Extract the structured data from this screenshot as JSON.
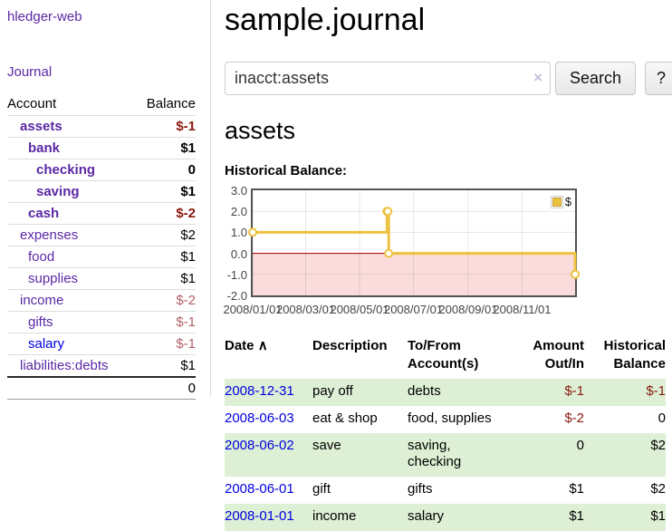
{
  "colors": {
    "link_visited_purple": "#5b28a5",
    "link_blue": "#0000e0",
    "negative_strong": "#8b1a10",
    "negative_muted": "#b06066",
    "row_stripe_green": "#ddefd5",
    "series_yellow": "#edc240",
    "chart_negative_region": "#fbdcdc",
    "chart_zero_line": "#a40000",
    "chart_border": "#545454"
  },
  "app": {
    "title": "hledger-web"
  },
  "sidebar": {
    "journal_link": "Journal",
    "accounts": {
      "headers": {
        "account": "Account",
        "balance": "Balance"
      },
      "rows": [
        {
          "name": "assets",
          "balance": "$-1"
        },
        {
          "name": "bank",
          "balance": "$1"
        },
        {
          "name": "checking",
          "balance": "0"
        },
        {
          "name": "saving",
          "balance": "$1"
        },
        {
          "name": "cash",
          "balance": "$-2"
        },
        {
          "name": "expenses",
          "balance": "$2"
        },
        {
          "name": "food",
          "balance": "$1"
        },
        {
          "name": "supplies",
          "balance": "$1"
        },
        {
          "name": "income",
          "balance": "$-2"
        },
        {
          "name": "gifts",
          "balance": "$-1"
        },
        {
          "name": "salary",
          "balance": "$-1"
        },
        {
          "name": "liabilities:debts",
          "balance": "$1"
        }
      ],
      "total": "0"
    }
  },
  "main": {
    "title": "sample.journal",
    "search": {
      "value": "inacct:assets",
      "clear_icon": "×",
      "button_label": "Search",
      "help_label": "?"
    },
    "account_heading": "assets"
  },
  "chart_data": {
    "type": "line",
    "title": "Historical Balance:",
    "step": true,
    "series": [
      {
        "name": "$",
        "color": "#edc240",
        "points": [
          {
            "date": "2008-01-01",
            "value": 1
          },
          {
            "date": "2008-06-01",
            "value": 2
          },
          {
            "date": "2008-06-02",
            "value": 2
          },
          {
            "date": "2008-06-03",
            "value": 0
          },
          {
            "date": "2008-12-31",
            "value": -1
          }
        ]
      }
    ],
    "x_range": [
      "2008-01-01",
      "2008-12-31"
    ],
    "y_range": [
      -2,
      3
    ],
    "x_ticks": [
      "2008/01/01",
      "2008/03/01",
      "2008/05/01",
      "2008/07/01",
      "2008/09/01",
      "2008/11/01"
    ],
    "y_ticks": [
      "3.0",
      "2.0",
      "1.0",
      "0.0",
      "-1.0",
      "-2.0"
    ],
    "legend": {
      "label": "$",
      "position": "top-right"
    },
    "grid": true,
    "negative_region_color": "#fbdcdc",
    "zero_line_color": "#a40000"
  },
  "transactions": {
    "headers": {
      "date": "Date",
      "sort_indicator": "∧",
      "description": "Description",
      "tofrom": "To/From Account(s)",
      "amount": "Amount Out/In",
      "historical": "Historical Balance"
    },
    "rows": [
      {
        "date": "2008-12-31",
        "description": "pay off",
        "accounts": "debts",
        "amount": "$-1",
        "balance": "$-1"
      },
      {
        "date": "2008-06-03",
        "description": "eat & shop",
        "accounts": "food, supplies",
        "amount": "$-2",
        "balance": "0"
      },
      {
        "date": "2008-06-02",
        "description": "save",
        "accounts": "saving, checking",
        "amount": "0",
        "balance": "$2"
      },
      {
        "date": "2008-06-01",
        "description": "gift",
        "accounts": "gifts",
        "amount": "$1",
        "balance": "$2"
      },
      {
        "date": "2008-01-01",
        "description": "income",
        "accounts": "salary",
        "amount": "$1",
        "balance": "$1"
      }
    ]
  }
}
